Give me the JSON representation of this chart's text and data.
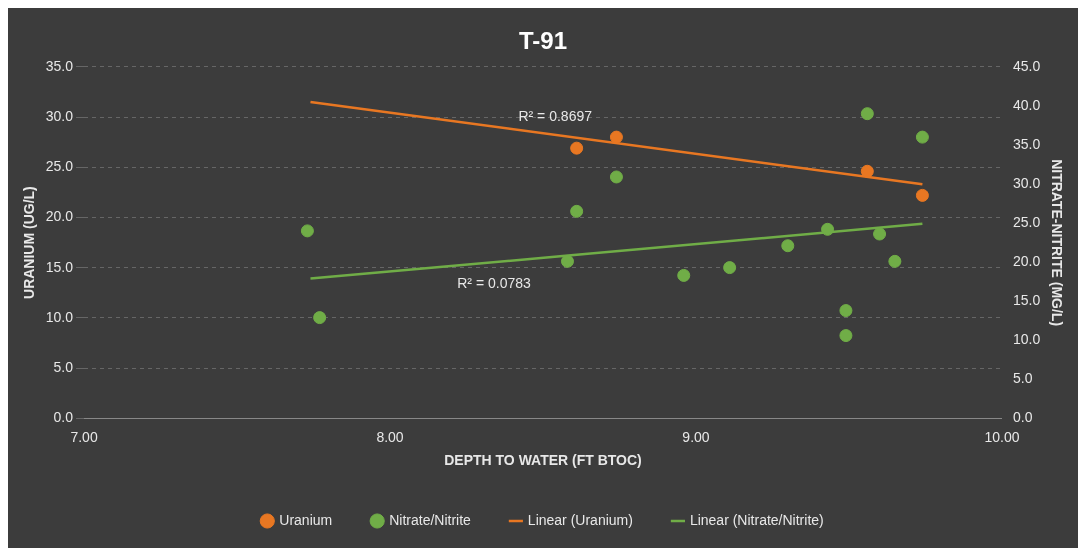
{
  "chart_data": {
    "type": "scatter",
    "title": "T-91",
    "xlabel": "DEPTH TO WATER (FT BTOC)",
    "ylabel": "URANIUM (UG/L)",
    "y2label": "NITRATE-NITRITE (MG/L)",
    "xlim": [
      7,
      10
    ],
    "xticks": [
      {
        "value": 7,
        "label": "7.00"
      },
      {
        "value": 8,
        "label": "8.00"
      },
      {
        "value": 9,
        "label": "9.00"
      },
      {
        "value": 10,
        "label": "10.00"
      }
    ],
    "ylim": [
      0,
      35
    ],
    "yticks": [
      {
        "value": 0,
        "label": "0.0"
      },
      {
        "value": 5,
        "label": "5.0"
      },
      {
        "value": 10,
        "label": "10.0"
      },
      {
        "value": 15,
        "label": "15.0"
      },
      {
        "value": 20,
        "label": "20.0"
      },
      {
        "value": 25,
        "label": "25.0"
      },
      {
        "value": 30,
        "label": "30.0"
      },
      {
        "value": 35,
        "label": "35.0"
      }
    ],
    "y2lim": [
      0,
      45
    ],
    "y2ticks": [
      {
        "value": 0,
        "label": "0.0"
      },
      {
        "value": 5,
        "label": "5.0"
      },
      {
        "value": 10,
        "label": "10.0"
      },
      {
        "value": 15,
        "label": "15.0"
      },
      {
        "value": 20,
        "label": "20.0"
      },
      {
        "value": 25,
        "label": "25.0"
      },
      {
        "value": 30,
        "label": "30.0"
      },
      {
        "value": 35,
        "label": "35.0"
      },
      {
        "value": 40,
        "label": "40.0"
      },
      {
        "value": 45,
        "label": "45.0"
      }
    ],
    "grid": "y",
    "legend": "bottom",
    "series": [
      {
        "name": "Uranium",
        "color": "#e87722",
        "marker": "circle",
        "x": [
          8.61,
          8.74,
          9.56,
          9.74
        ],
        "values": [
          26.9,
          28.0,
          24.6,
          22.2
        ]
      },
      {
        "name": "Nitrate/Nitrite",
        "color": "#70ad47",
        "marker": "circle",
        "axis": "y2",
        "x": [
          7.73,
          7.77,
          8.58,
          8.61,
          8.74,
          8.96,
          9.11,
          9.3,
          9.43,
          9.49,
          9.49,
          9.56,
          9.6,
          9.65,
          9.74
        ],
        "values": [
          24.0,
          12.9,
          20.1,
          26.5,
          30.9,
          18.3,
          19.3,
          22.1,
          24.2,
          13.8,
          10.6,
          39.0,
          23.6,
          20.1,
          36.0
        ]
      },
      {
        "name": "Linear (Uranium)",
        "type": "line",
        "color": "#e87722",
        "x": [
          7.74,
          9.74
        ],
        "values": [
          31.5,
          23.3
        ]
      },
      {
        "name": "Linear (Nitrate/Nitrite)",
        "type": "line",
        "color": "#70ad47",
        "axis": "y2",
        "x": [
          7.74,
          9.74
        ],
        "values": [
          17.9,
          24.9
        ]
      }
    ],
    "annotations": [
      "R² = 0.8697",
      "R² = 0.0783"
    ]
  }
}
